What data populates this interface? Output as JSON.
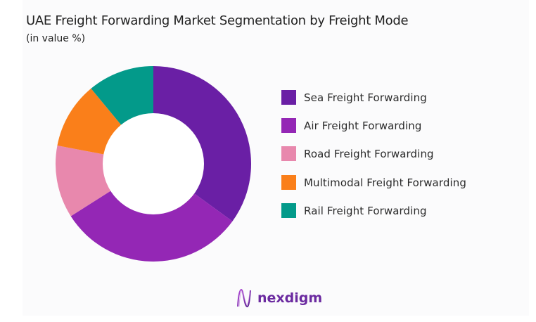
{
  "header": {
    "title": "UAE Freight Forwarding Market Segmentation by Freight Mode",
    "subtitle": "(in value %)"
  },
  "legend": {
    "items": [
      {
        "label": "Sea Freight Forwarding",
        "color": "#6a1fa5"
      },
      {
        "label": "Air Freight Forwarding",
        "color": "#9427b5"
      },
      {
        "label": "Road Freight Forwarding",
        "color": "#e888ad"
      },
      {
        "label": "Multimodal Freight Forwarding",
        "color": "#fa7f1a"
      },
      {
        "label": "Rail Freight Forwarding",
        "color": "#039a8a"
      }
    ]
  },
  "branding": {
    "logo_text": "nexdigm",
    "logo_icon": "wave-icon",
    "logo_color": "#6b2aa0"
  },
  "chart_data": {
    "type": "pie",
    "variant": "donut",
    "title": "UAE Freight Forwarding Market Segmentation by Freight Mode",
    "subtitle": "(in value %)",
    "categories": [
      "Sea Freight Forwarding",
      "Air Freight Forwarding",
      "Road Freight Forwarding",
      "Multimodal Freight Forwarding",
      "Rail Freight Forwarding"
    ],
    "values": [
      35,
      31,
      12,
      11,
      11
    ],
    "colors": [
      "#6a1fa5",
      "#9427b5",
      "#e888ad",
      "#fa7f1a",
      "#039a8a"
    ],
    "start_angle": "12 o'clock, clockwise",
    "legend_position": "right",
    "data_labels": false
  }
}
